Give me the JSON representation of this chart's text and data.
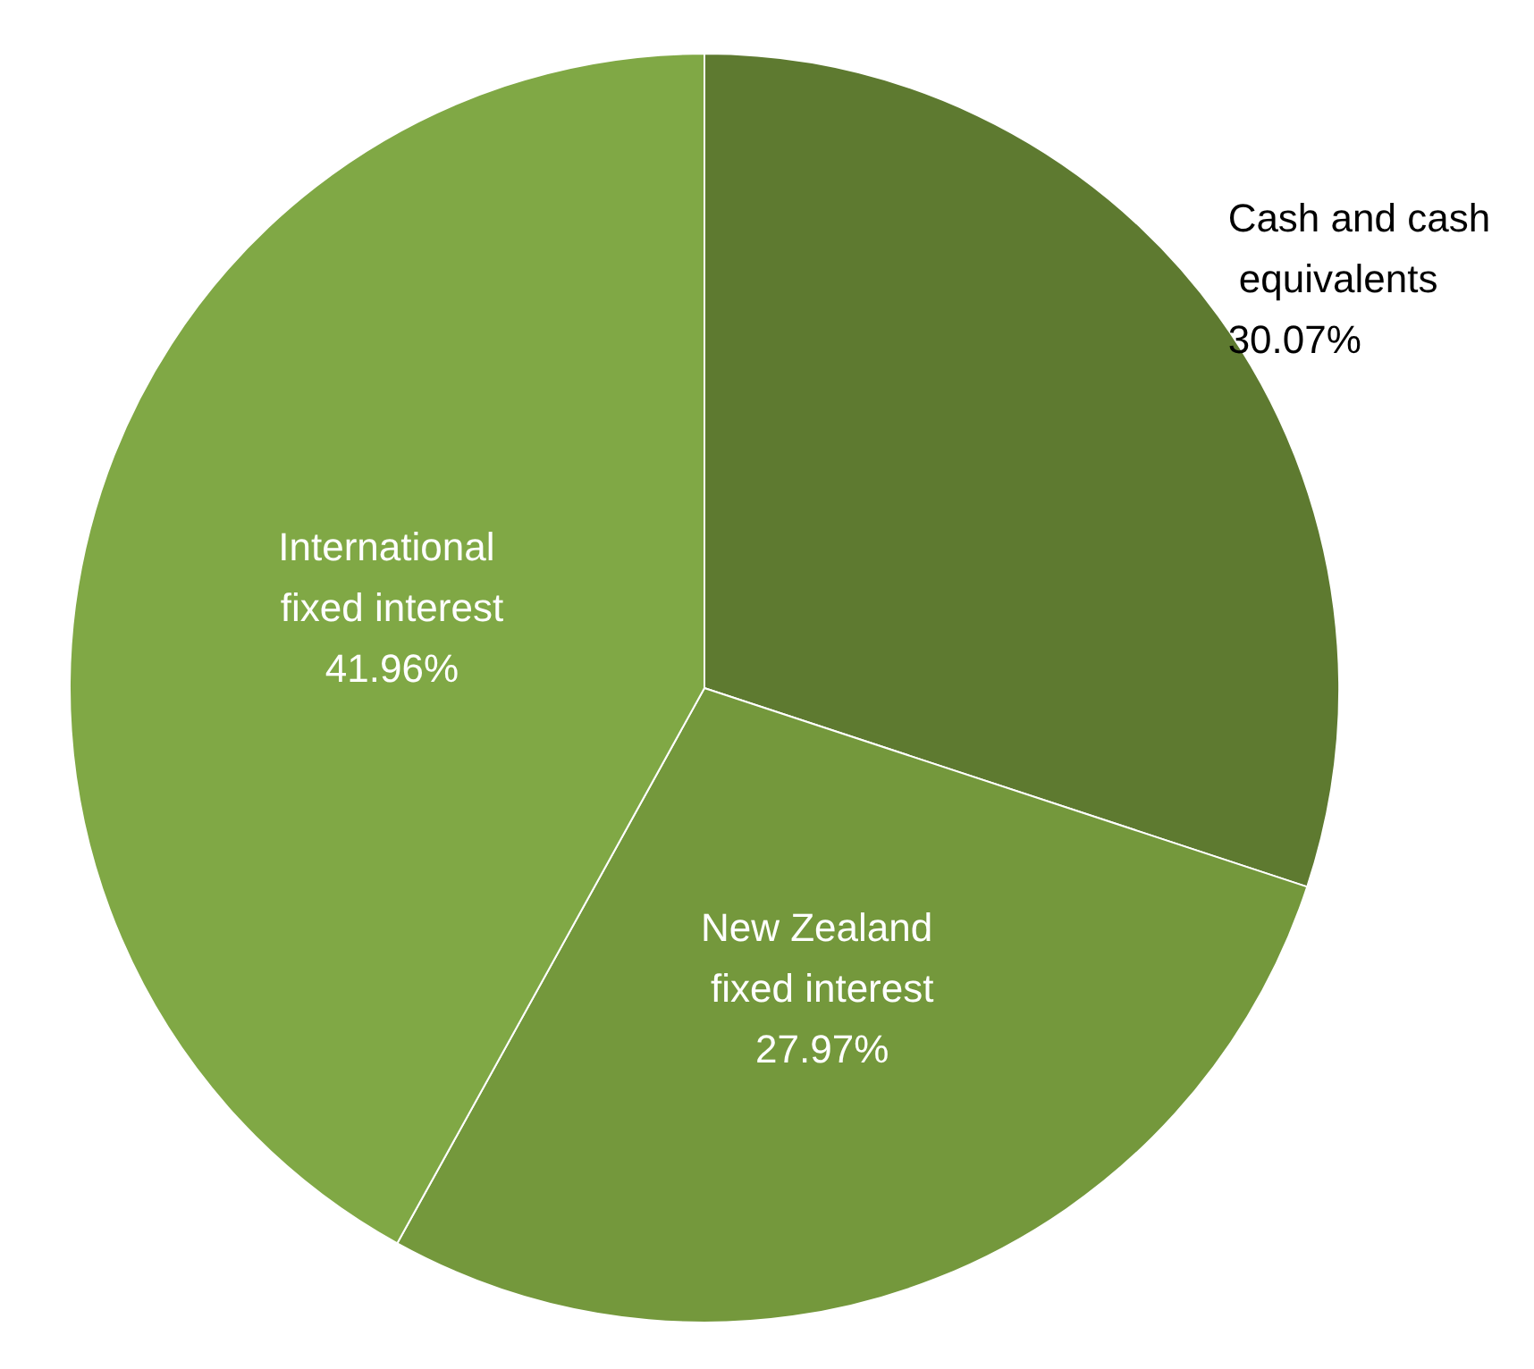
{
  "chart_data": {
    "type": "pie",
    "categories": [
      "Cash and cash equivalents",
      "New Zealand fixed interest",
      "International fixed interest"
    ],
    "values": [
      30.07,
      27.97,
      41.96
    ],
    "colors": [
      "#5e7a30",
      "#74983c",
      "#80a845"
    ],
    "value_labels": [
      "30.07%",
      "27.97%",
      "41.96%"
    ]
  }
}
